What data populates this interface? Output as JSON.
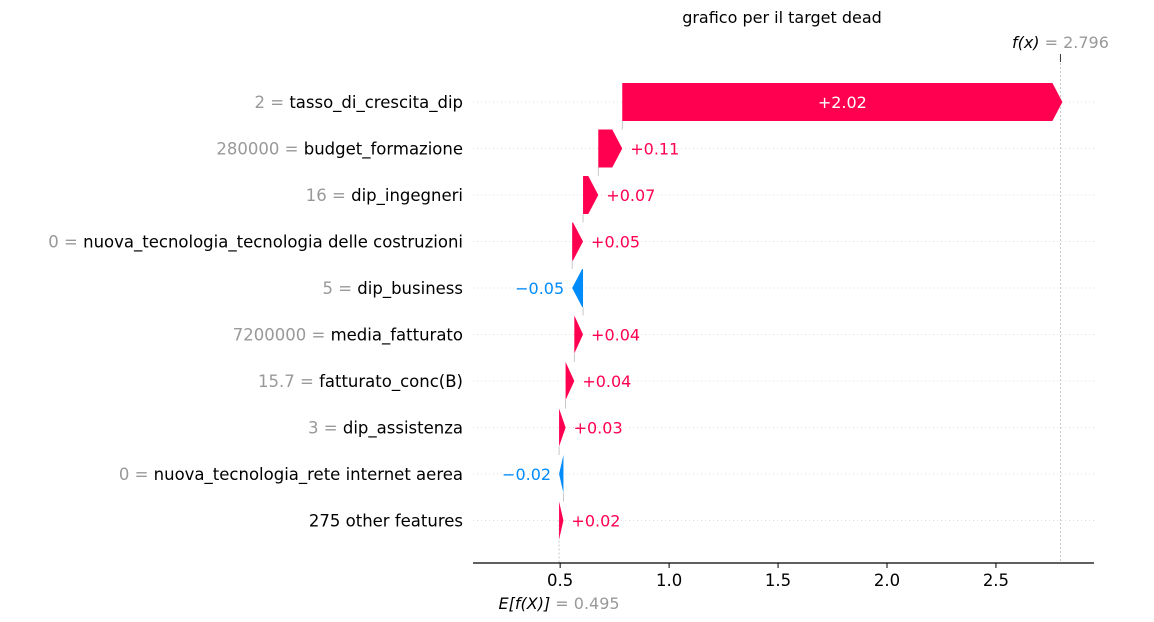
{
  "chart_data": {
    "type": "waterfall",
    "title": "grafico per il target dead",
    "base_value": 0.495,
    "base_label_math": "E[f(X)]",
    "base_label_value": "0.495",
    "output_value": 2.796,
    "output_label_math": "f(x)",
    "output_label_value": "2.796",
    "xlim": [
      0.1,
      2.95
    ],
    "ticks": [
      0.5,
      1.0,
      1.5,
      2.0,
      2.5
    ],
    "tick_labels": [
      "0.5",
      "1.0",
      "1.5",
      "2.0",
      "2.5"
    ],
    "features": [
      {
        "value": "2",
        "name": "tasso_di_crescita_dip",
        "contribution": 2.02,
        "label": "+2.02"
      },
      {
        "value": "280000",
        "name": "budget_formazione",
        "contribution": 0.11,
        "label": "+0.11"
      },
      {
        "value": "16",
        "name": "dip_ingegneri",
        "contribution": 0.07,
        "label": "+0.07"
      },
      {
        "value": "0",
        "name": "nuova_tecnologia_tecnologia delle costruzioni",
        "contribution": 0.05,
        "label": "+0.05"
      },
      {
        "value": "5",
        "name": "dip_business",
        "contribution": -0.05,
        "label": "−0.05"
      },
      {
        "value": "7200000",
        "name": "media_fatturato",
        "contribution": 0.04,
        "label": "+0.04"
      },
      {
        "value": "15.7",
        "name": "fatturato_conc(B)",
        "contribution": 0.04,
        "label": "+0.04"
      },
      {
        "value": "3",
        "name": "dip_assistenza",
        "contribution": 0.03,
        "label": "+0.03"
      },
      {
        "value": "0",
        "name": "nuova_tecnologia_rete internet aerea",
        "contribution": -0.02,
        "label": "−0.02"
      },
      {
        "value": "",
        "name": "275 other features",
        "contribution": 0.02,
        "label": "+0.02"
      }
    ],
    "colors": {
      "positive": "#ff0051",
      "negative": "#008bfb",
      "muted": "#999999"
    }
  }
}
